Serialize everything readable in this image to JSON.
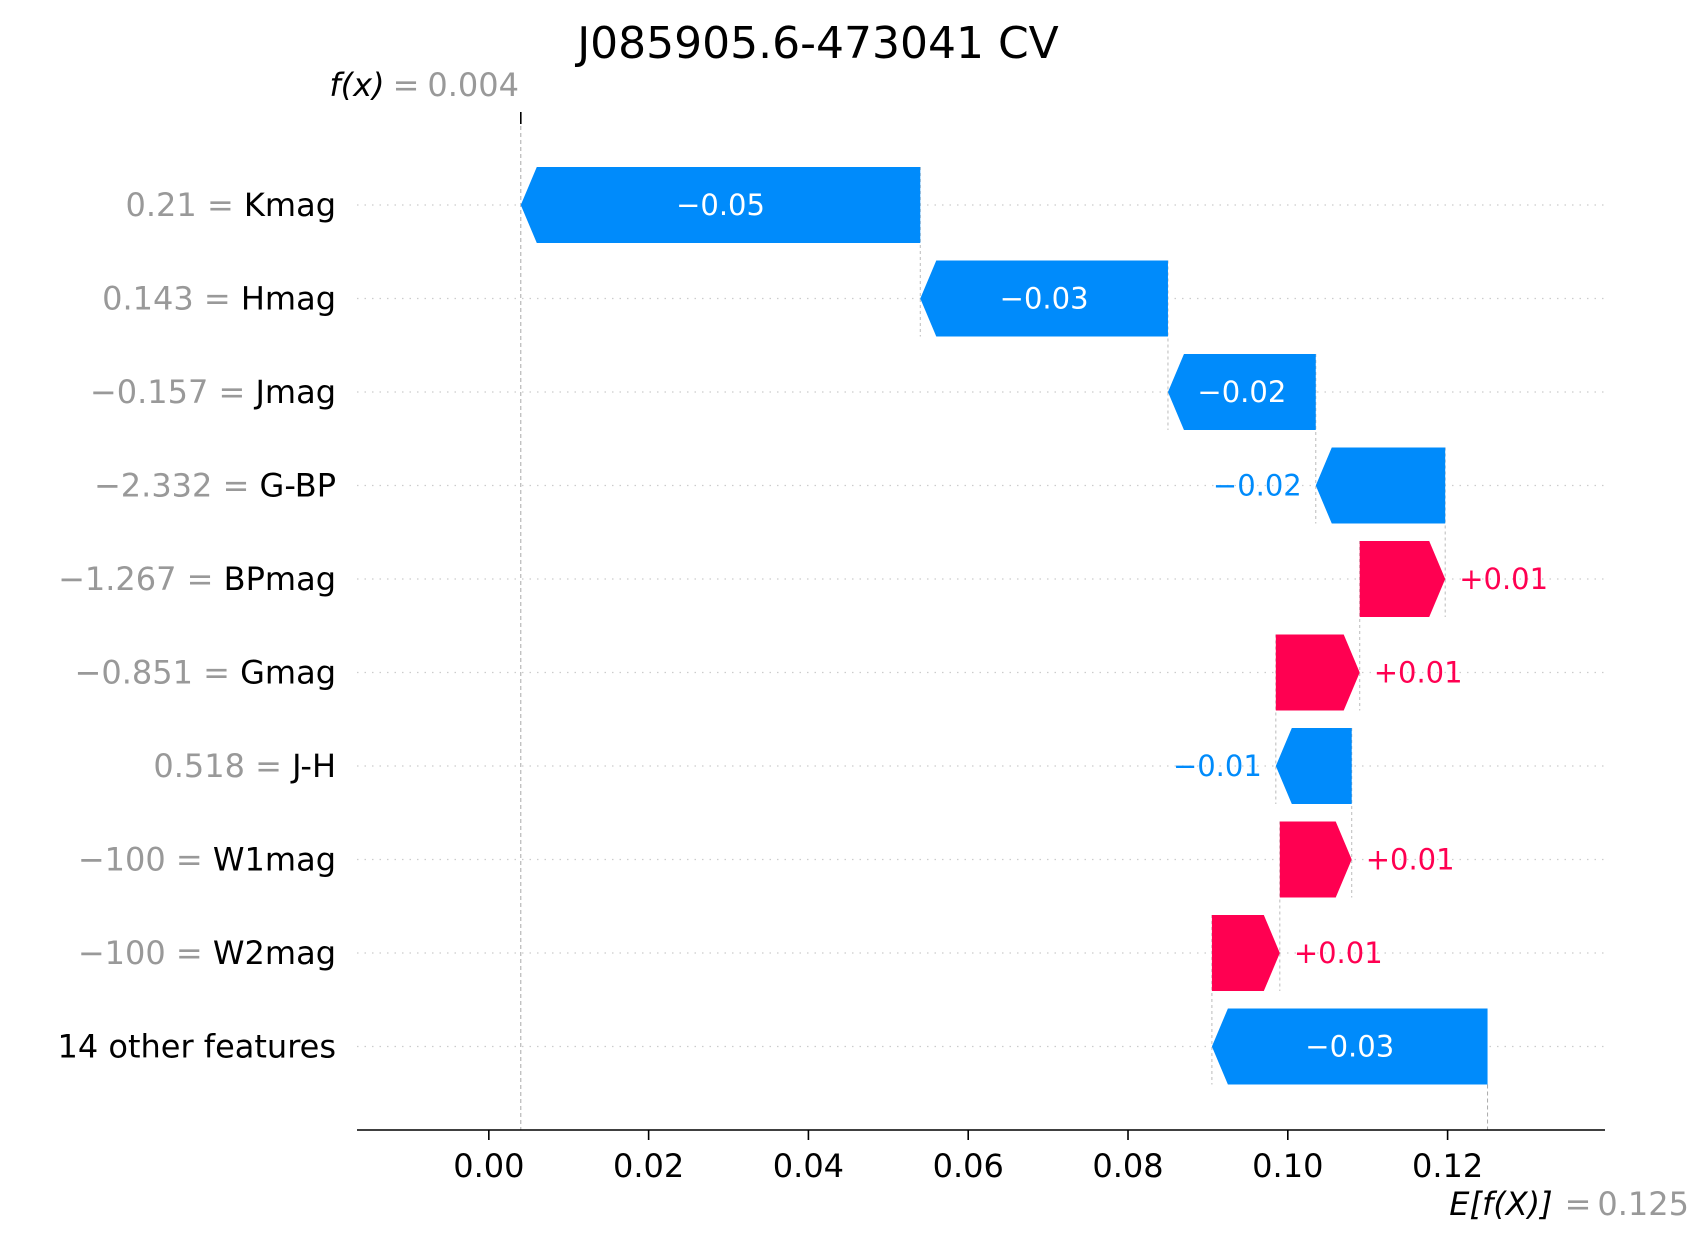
{
  "chart_data": {
    "type": "waterfall",
    "title": "J085905.6-473041 CV",
    "fx_label": "f(x)",
    "fx_value": "0.004",
    "fx": 0.004,
    "efx_label": "E[f(X)]",
    "efx_value": "0.125",
    "efx": 0.125,
    "xlim": [
      -0.0165,
      0.1397
    ],
    "xticks": [
      0.0,
      0.02,
      0.04,
      0.06,
      0.08,
      0.1,
      0.12
    ],
    "xtick_labels": [
      "0.00",
      "0.02",
      "0.04",
      "0.06",
      "0.08",
      "0.10",
      "0.12"
    ],
    "grid": "dotted horizontal",
    "positive_color": "#ff0051",
    "negative_color": "#008bfb",
    "features": [
      {
        "value": "0.21",
        "name": "Kmag",
        "start": 0.054,
        "end": 0.004,
        "label": "−0.05"
      },
      {
        "value": "0.143",
        "name": "Hmag",
        "start": 0.085,
        "end": 0.054,
        "label": "−0.03"
      },
      {
        "value": "−0.157",
        "name": "Jmag",
        "start": 0.1035,
        "end": 0.085,
        "label": "−0.02"
      },
      {
        "value": "−2.332",
        "name": "G-BP",
        "start": 0.1197,
        "end": 0.1035,
        "label": "−0.02"
      },
      {
        "value": "−1.267",
        "name": "BPmag",
        "start": 0.109,
        "end": 0.1197,
        "label": "+0.01"
      },
      {
        "value": "−0.851",
        "name": "Gmag",
        "start": 0.0985,
        "end": 0.109,
        "label": "+0.01"
      },
      {
        "value": "0.518",
        "name": "J-H",
        "start": 0.108,
        "end": 0.0985,
        "label": "−0.01"
      },
      {
        "value": "−100",
        "name": "W1mag",
        "start": 0.099,
        "end": 0.108,
        "label": "+0.01"
      },
      {
        "value": "−100",
        "name": "W2mag",
        "start": 0.0905,
        "end": 0.099,
        "label": "+0.01"
      },
      {
        "value": "",
        "name": "14 other features",
        "start": 0.125,
        "end": 0.0905,
        "label": "−0.03"
      }
    ]
  }
}
